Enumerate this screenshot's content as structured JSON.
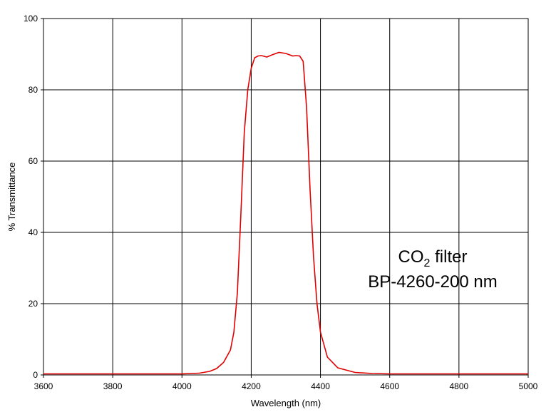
{
  "chart_data": {
    "type": "line",
    "title": "",
    "xlabel": "Wavelength (nm)",
    "ylabel": "% Transmittance",
    "xlim": [
      3600,
      5000
    ],
    "ylim": [
      0,
      100
    ],
    "x_ticks": [
      "3600",
      "3800",
      "4000",
      "4200",
      "4400",
      "4600",
      "4800",
      "5000"
    ],
    "y_ticks": [
      "0",
      "20",
      "40",
      "60",
      "80",
      "100"
    ],
    "grid": true,
    "legend": "none",
    "annotation": {
      "line1_main": "CO",
      "line1_sub": "2",
      "line1_rest": " filter",
      "line2": "BP-4260-200 nm"
    },
    "series": [
      {
        "color": "#e00000",
        "x": [
          3600,
          3800,
          4000,
          4050,
          4080,
          4100,
          4120,
          4140,
          4150,
          4160,
          4170,
          4180,
          4190,
          4200,
          4210,
          4220,
          4230,
          4245,
          4260,
          4280,
          4300,
          4320,
          4330,
          4340,
          4350,
          4360,
          4370,
          4380,
          4390,
          4400,
          4420,
          4450,
          4500,
          4550,
          4600,
          4800,
          5000
        ],
        "y": [
          0.3,
          0.3,
          0.3,
          0.5,
          1,
          1.8,
          3.5,
          7,
          12,
          23,
          45,
          68,
          80,
          86,
          89,
          89.5,
          89.6,
          89.2,
          89.8,
          90.5,
          90.2,
          89.5,
          89.6,
          89.5,
          88,
          75,
          52,
          33,
          20,
          12,
          5,
          2,
          0.7,
          0.4,
          0.3,
          0.3,
          0.3
        ]
      }
    ]
  }
}
